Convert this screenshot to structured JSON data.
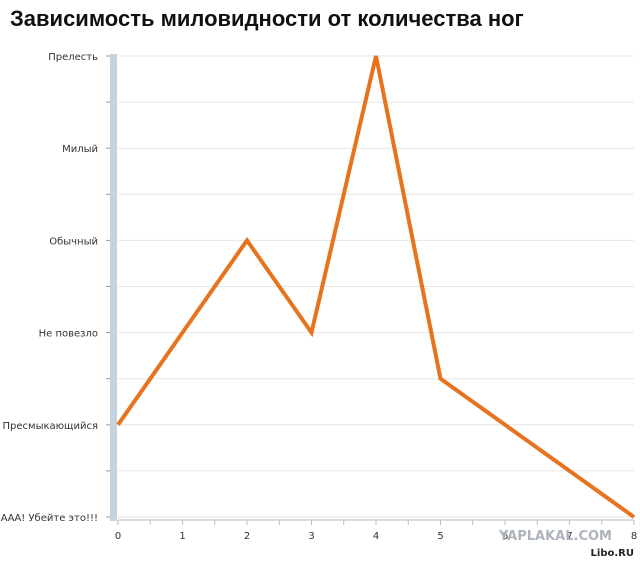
{
  "chart_data": {
    "type": "line",
    "title": "Зависимость миловидности от количества ног",
    "xlabel": "",
    "ylabel": "",
    "x": [
      0,
      1,
      2,
      3,
      4,
      5,
      6,
      7,
      8
    ],
    "x_tick_labels": [
      "0",
      "1",
      "2",
      "3",
      "4",
      "5",
      "6",
      "7",
      "8"
    ],
    "y_categories": [
      "ААА! Убейте это!!!",
      "Пресмыкающийся",
      "Не повезло",
      "Обычный",
      "Милый",
      "Прелесть"
    ],
    "series": [
      {
        "values": [
          1,
          2,
          3,
          2,
          5,
          1.5,
          1,
          0.5,
          0
        ]
      }
    ],
    "ylim": [
      0,
      5
    ],
    "xlim": [
      0,
      8
    ],
    "grid": true,
    "line_color": "#e8731e",
    "axis_bar_color": "#c4d3e0"
  },
  "watermarks": {
    "primary": "YAPLAKAL.COM",
    "secondary": "Libo.RU"
  }
}
